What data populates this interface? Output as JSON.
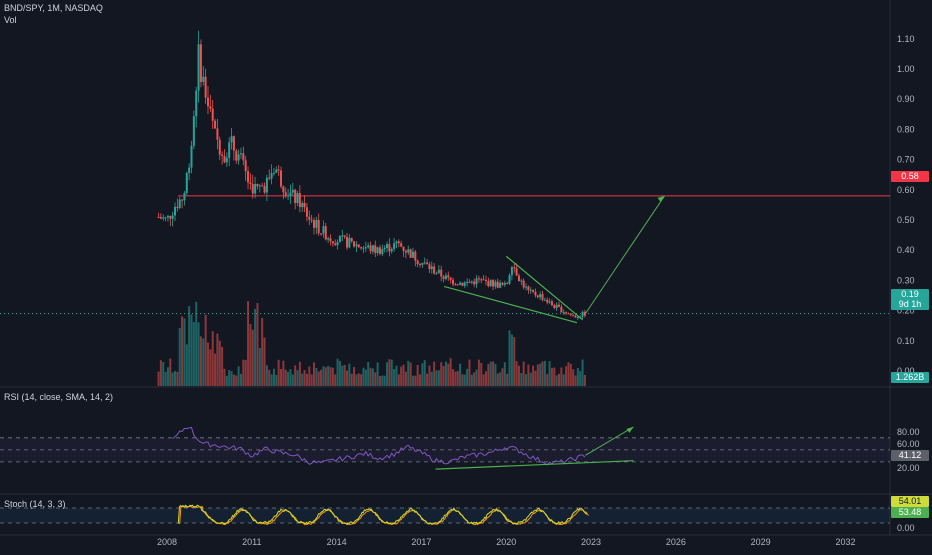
{
  "header": {
    "symbol": "BND/SPY, 1M, NASDAQ",
    "volume_label": "Vol"
  },
  "price_axis": {
    "labels": [
      "1.10",
      "1.00",
      "0.90",
      "0.80",
      "0.70",
      "0.60",
      "0.50",
      "0.40",
      "0.30",
      "0.20",
      "0.10",
      "0.00"
    ]
  },
  "badges": {
    "resistance": "0.58",
    "last_price": "0.19",
    "countdown": "9d 1h",
    "volume": "1.262B",
    "rsi": "41.12",
    "stoch_k": "54.01",
    "stoch_d": "53.48"
  },
  "rsi_panel": {
    "title": "RSI (14, close, SMA, 14, 2)",
    "labels": [
      "80.00",
      "60.00",
      "40.00",
      "20.00"
    ],
    "levels": [
      70,
      50,
      30
    ]
  },
  "stoch_panel": {
    "title": "Stoch (14, 3, 3)",
    "labels": [
      "0.00"
    ],
    "levels": [
      80,
      20
    ]
  },
  "time_axis": {
    "labels": [
      "2008",
      "2011",
      "2014",
      "2017",
      "2020",
      "2023",
      "2026",
      "2029",
      "2032"
    ]
  },
  "colors": {
    "background": "#131722",
    "up": "#26a69a",
    "down": "#ef5350",
    "resistance": "#f23645",
    "trendline": "#4caf50",
    "rsi_line": "#7e57c2",
    "stoch_k": "#cddc39",
    "stoch_d": "#ff9800"
  },
  "chart_data": {
    "type": "candlestick",
    "price_series": {
      "name": "BND/SPY",
      "x": [
        2007.7,
        2008.0,
        2008.3,
        2008.6,
        2008.9,
        2009.1,
        2009.4,
        2009.7,
        2010.0,
        2010.3,
        2010.6,
        2010.9,
        2011.2,
        2011.5,
        2011.8,
        2012.1,
        2012.4,
        2012.7,
        2013.0,
        2013.4,
        2013.8,
        2014.2,
        2014.6,
        2015.0,
        2015.4,
        2015.8,
        2016.2,
        2016.6,
        2017.0,
        2017.5,
        2018.0,
        2018.5,
        2019.0,
        2019.5,
        2020.0,
        2020.2,
        2020.5,
        2020.8,
        2021.2,
        2021.6,
        2022.0,
        2022.4,
        2022.8
      ],
      "y": [
        0.51,
        0.5,
        0.55,
        0.58,
        0.78,
        1.05,
        0.9,
        0.78,
        0.72,
        0.75,
        0.7,
        0.62,
        0.6,
        0.62,
        0.68,
        0.62,
        0.58,
        0.56,
        0.51,
        0.47,
        0.44,
        0.43,
        0.42,
        0.41,
        0.4,
        0.41,
        0.42,
        0.39,
        0.36,
        0.33,
        0.3,
        0.29,
        0.3,
        0.29,
        0.28,
        0.36,
        0.3,
        0.26,
        0.25,
        0.22,
        0.2,
        0.18,
        0.19
      ]
    },
    "volume_series": {
      "name": "Vol",
      "last_value": "1.262B"
    },
    "resistance_level": 0.58,
    "last_price": 0.19,
    "projection": [
      [
        2022.8,
        0.19
      ],
      [
        2025.6,
        0.58
      ]
    ],
    "rsi": {
      "x": [
        2008.2,
        2008.6,
        2008.8,
        2009.0,
        2009.3,
        2009.7,
        2010.2,
        2010.6,
        2011.0,
        2011.5,
        2012.0,
        2012.5,
        2013.0,
        2013.5,
        2014.0,
        2014.5,
        2015.0,
        2015.5,
        2016.0,
        2016.5,
        2017.0,
        2017.5,
        2018.0,
        2018.5,
        2019.0,
        2019.5,
        2020.0,
        2020.3,
        2020.6,
        2021.0,
        2021.5,
        2022.0,
        2022.4,
        2022.8
      ],
      "y": [
        66,
        85,
        90,
        72,
        60,
        58,
        54,
        52,
        40,
        52,
        45,
        42,
        30,
        28,
        34,
        38,
        44,
        36,
        42,
        55,
        45,
        32,
        30,
        38,
        42,
        46,
        55,
        52,
        45,
        36,
        28,
        30,
        35,
        41
      ],
      "projection": [
        [
          2022.8,
          41
        ],
        [
          2024.5,
          88
        ]
      ],
      "trendline": [
        [
          2017.5,
          18
        ],
        [
          2024.5,
          32
        ]
      ],
      "current": 41.12
    },
    "stochastic": {
      "k": 54.01,
      "d": 53.48
    },
    "xlim": [
      2006.3,
      2032.8
    ],
    "ylim": [
      -0.05,
      1.14
    ]
  }
}
